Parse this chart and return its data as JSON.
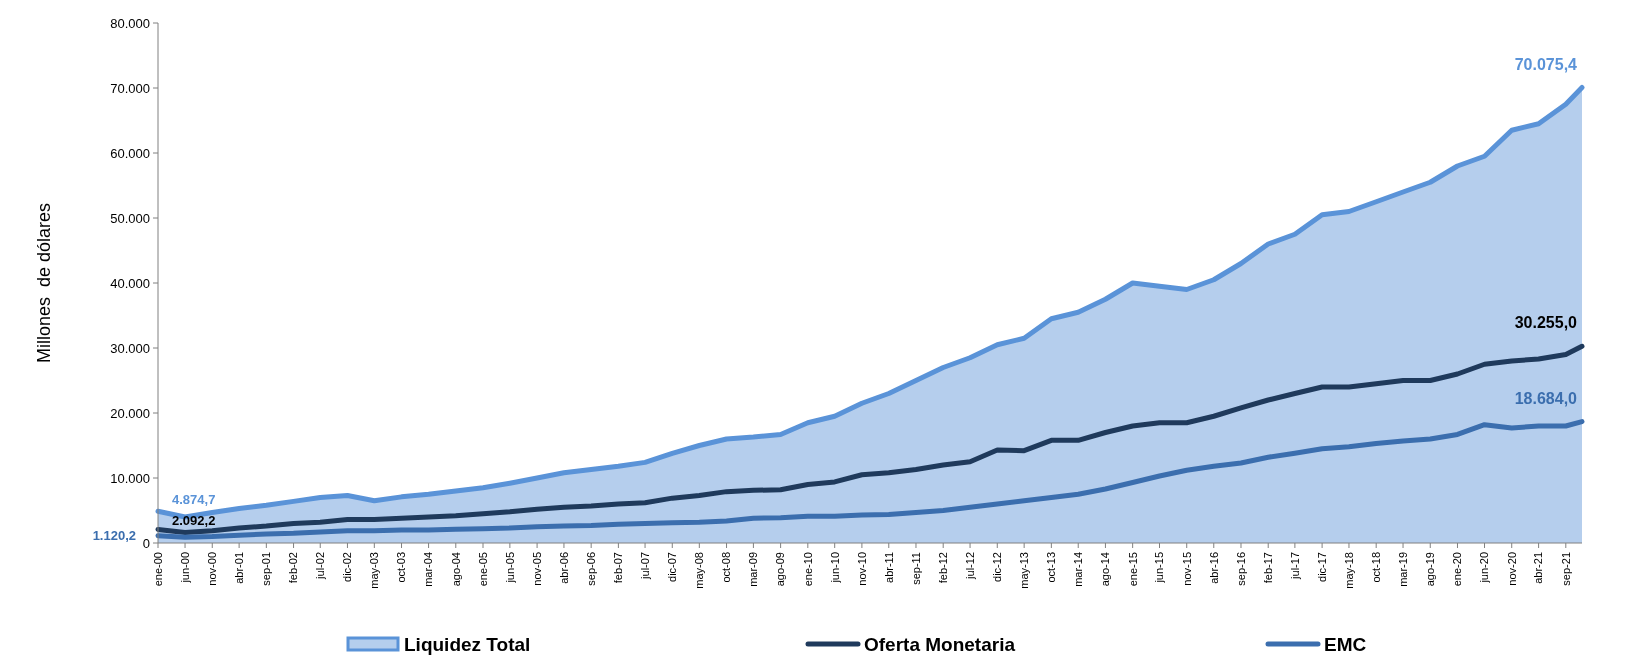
{
  "chart_data": {
    "type": "line",
    "ylabel": "Millones  de dólares",
    "x": [
      "2000-01",
      "2000-06",
      "2000-11",
      "2001-04",
      "2001-09",
      "2002-02",
      "2002-07",
      "2002-12",
      "2003-05",
      "2003-10",
      "2004-03",
      "2004-08",
      "2005-01",
      "2005-06",
      "2005-11",
      "2006-04",
      "2006-09",
      "2007-02",
      "2007-07",
      "2007-12",
      "2008-05",
      "2008-10",
      "2009-03",
      "2009-08",
      "2010-01",
      "2010-06",
      "2010-11",
      "2011-04",
      "2011-09",
      "2012-02",
      "2012-07",
      "2012-12",
      "2013-05",
      "2013-10",
      "2014-03",
      "2014-08",
      "2015-01",
      "2015-06",
      "2015-11",
      "2016-04",
      "2016-09",
      "2017-02",
      "2017-07",
      "2017-12",
      "2018-05",
      "2018-10",
      "2019-03",
      "2019-08",
      "2020-01",
      "2020-06",
      "2020-11",
      "2021-04",
      "2021-09",
      "2021-12"
    ],
    "xlim": [
      "2000-01",
      "2021-12"
    ],
    "xticks": [
      {
        "value": "2000-01",
        "label": "ene-00"
      },
      {
        "value": "2000-06",
        "label": "jun-00"
      },
      {
        "value": "2000-11",
        "label": "nov-00"
      },
      {
        "value": "2001-04",
        "label": "abr-01"
      },
      {
        "value": "2001-09",
        "label": "sep-01"
      },
      {
        "value": "2002-02",
        "label": "feb-02"
      },
      {
        "value": "2002-07",
        "label": "jul-02"
      },
      {
        "value": "2002-12",
        "label": "dic-02"
      },
      {
        "value": "2003-05",
        "label": "may-03"
      },
      {
        "value": "2003-10",
        "label": "oct-03"
      },
      {
        "value": "2004-03",
        "label": "mar-04"
      },
      {
        "value": "2004-08",
        "label": "ago-04"
      },
      {
        "value": "2005-01",
        "label": "ene-05"
      },
      {
        "value": "2005-06",
        "label": "jun-05"
      },
      {
        "value": "2005-11",
        "label": "nov-05"
      },
      {
        "value": "2006-04",
        "label": "abr-06"
      },
      {
        "value": "2006-09",
        "label": "sep-06"
      },
      {
        "value": "2007-02",
        "label": "feb-07"
      },
      {
        "value": "2007-07",
        "label": "jul-07"
      },
      {
        "value": "2007-12",
        "label": "dic-07"
      },
      {
        "value": "2008-05",
        "label": "may-08"
      },
      {
        "value": "2008-10",
        "label": "oct-08"
      },
      {
        "value": "2009-03",
        "label": "mar-09"
      },
      {
        "value": "2009-08",
        "label": "ago-09"
      },
      {
        "value": "2010-01",
        "label": "ene-10"
      },
      {
        "value": "2010-06",
        "label": "jun-10"
      },
      {
        "value": "2010-11",
        "label": "nov-10"
      },
      {
        "value": "2011-04",
        "label": "abr-11"
      },
      {
        "value": "2011-09",
        "label": "sep-11"
      },
      {
        "value": "2012-02",
        "label": "feb-12"
      },
      {
        "value": "2012-07",
        "label": "jul-12"
      },
      {
        "value": "2012-12",
        "label": "dic-12"
      },
      {
        "value": "2013-05",
        "label": "may-13"
      },
      {
        "value": "2013-10",
        "label": "oct-13"
      },
      {
        "value": "2014-03",
        "label": "mar-14"
      },
      {
        "value": "2014-08",
        "label": "ago-14"
      },
      {
        "value": "2015-01",
        "label": "ene-15"
      },
      {
        "value": "2015-06",
        "label": "jun-15"
      },
      {
        "value": "2015-11",
        "label": "nov-15"
      },
      {
        "value": "2016-04",
        "label": "abr-16"
      },
      {
        "value": "2016-09",
        "label": "sep-16"
      },
      {
        "value": "2017-02",
        "label": "feb-17"
      },
      {
        "value": "2017-07",
        "label": "jul-17"
      },
      {
        "value": "2017-12",
        "label": "dic-17"
      },
      {
        "value": "2018-05",
        "label": "may-18"
      },
      {
        "value": "2018-10",
        "label": "oct-18"
      },
      {
        "value": "2019-03",
        "label": "mar-19"
      },
      {
        "value": "2019-08",
        "label": "ago-19"
      },
      {
        "value": "2020-01",
        "label": "ene-20"
      },
      {
        "value": "2020-06",
        "label": "jun-20"
      },
      {
        "value": "2020-11",
        "label": "nov-20"
      },
      {
        "value": "2021-04",
        "label": "abr-21"
      },
      {
        "value": "2021-09",
        "label": "sep-21"
      }
    ],
    "ylim": [
      0,
      80000
    ],
    "yticks": [
      {
        "value": 0,
        "label": "0"
      },
      {
        "value": 10000,
        "label": "10.000"
      },
      {
        "value": 20000,
        "label": "20.000"
      },
      {
        "value": 30000,
        "label": "30.000"
      },
      {
        "value": 40000,
        "label": "40.000"
      },
      {
        "value": 50000,
        "label": "50.000"
      },
      {
        "value": 60000,
        "label": "60.000"
      },
      {
        "value": 70000,
        "label": "70.000"
      },
      {
        "value": 80000,
        "label": "80.000"
      }
    ],
    "grid": false,
    "legend": "bottom",
    "marker": "none",
    "line_style": "solid",
    "series": [
      {
        "name": "Liquidez Total",
        "type": "area",
        "color": "#5a93d8",
        "values": [
          4874.7,
          4000,
          4700,
          5300,
          5800,
          6400,
          7000,
          7300,
          6500,
          7100,
          7500,
          8000,
          8500,
          9200,
          10000,
          10800,
          11300,
          11800,
          12400,
          13800,
          15000,
          16000,
          16300,
          16700,
          18500,
          19500,
          21500,
          23000,
          25000,
          27000,
          28500,
          30500,
          31500,
          34500,
          35500,
          37500,
          40000,
          39500,
          39000,
          40500,
          43000,
          46000,
          47500,
          50500,
          51000,
          52500,
          54000,
          55500,
          58000,
          59500,
          63500,
          64500,
          67500,
          70075.4
        ],
        "value_labels": [
          "4.874,7",
          null,
          null,
          null,
          null,
          null,
          null,
          null,
          null,
          null,
          null,
          null,
          null,
          null,
          null,
          null,
          null,
          null,
          null,
          null,
          null,
          null,
          null,
          null,
          null,
          null,
          null,
          null,
          null,
          null,
          null,
          null,
          null,
          null,
          null,
          null,
          null,
          null,
          null,
          null,
          null,
          null,
          null,
          null,
          null,
          null,
          null,
          null,
          null,
          null,
          null,
          null,
          null,
          "70.075,4"
        ]
      },
      {
        "name": "Oferta Monetaria",
        "color": "#1f3a5c",
        "values": [
          2092.2,
          1600,
          1900,
          2300,
          2600,
          3000,
          3200,
          3600,
          3600,
          3800,
          4000,
          4200,
          4500,
          4800,
          5200,
          5500,
          5700,
          6000,
          6200,
          6900,
          7300,
          7900,
          8100,
          8200,
          9000,
          9400,
          10500,
          10800,
          11300,
          12000,
          12500,
          14300,
          14200,
          15800,
          15800,
          17000,
          18000,
          18500,
          18500,
          19500,
          20800,
          22000,
          23000,
          24000,
          24000,
          24500,
          25000,
          25000,
          26000,
          27500,
          28000,
          28300,
          29000,
          30255
        ],
        "value_labels": [
          "2.092,2",
          null,
          null,
          null,
          null,
          null,
          null,
          null,
          null,
          null,
          null,
          null,
          null,
          null,
          null,
          null,
          null,
          null,
          null,
          null,
          null,
          null,
          null,
          null,
          null,
          null,
          null,
          null,
          null,
          null,
          null,
          null,
          null,
          null,
          null,
          null,
          null,
          null,
          null,
          null,
          null,
          null,
          null,
          null,
          null,
          null,
          null,
          null,
          null,
          null,
          null,
          null,
          null,
          "30.255,0"
        ]
      },
      {
        "name": "EMC",
        "color": "#3b6eae",
        "values": [
          1120.2,
          900,
          1000,
          1200,
          1400,
          1500,
          1700,
          1900,
          1900,
          2000,
          2000,
          2100,
          2200,
          2300,
          2500,
          2600,
          2700,
          2900,
          3000,
          3100,
          3200,
          3400,
          3800,
          3900,
          4100,
          4100,
          4300,
          4400,
          4700,
          5000,
          5500,
          6000,
          6500,
          7000,
          7500,
          8300,
          9300,
          10300,
          11200,
          11800,
          12300,
          13200,
          13800,
          14500,
          14800,
          15300,
          15700,
          16000,
          16700,
          18200,
          17700,
          18000,
          18000,
          18684
        ],
        "value_labels": [
          "1.120,2",
          null,
          null,
          null,
          null,
          null,
          null,
          null,
          null,
          null,
          null,
          null,
          null,
          null,
          null,
          null,
          null,
          null,
          null,
          null,
          null,
          null,
          null,
          null,
          null,
          null,
          null,
          null,
          null,
          null,
          null,
          null,
          null,
          null,
          null,
          null,
          null,
          null,
          null,
          null,
          null,
          null,
          null,
          null,
          null,
          null,
          null,
          null,
          null,
          null,
          null,
          null,
          null,
          "18.684,0"
        ]
      }
    ]
  }
}
